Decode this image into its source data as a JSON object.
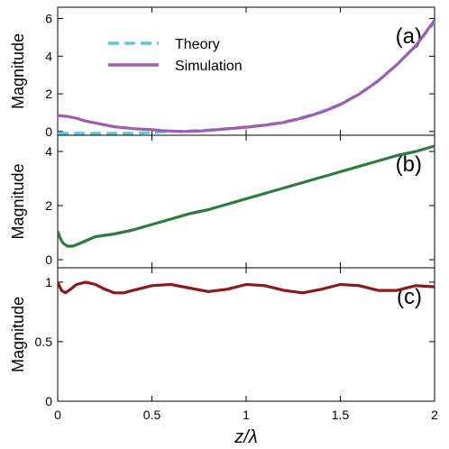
{
  "chart_data": [
    {
      "type": "line",
      "panel_label": "(a)",
      "xlabel": "",
      "ylabel": "Magnitude",
      "xlim": [
        0,
        2
      ],
      "ylim": [
        -0.2,
        6.6
      ],
      "yticks": [
        0,
        2,
        4,
        6
      ],
      "xticks": [
        0,
        0.5,
        1,
        1.5,
        2
      ],
      "grid": false,
      "legend": "top-left",
      "series": [
        {
          "name": "Theory",
          "color": "#5bc8dc",
          "dash": true,
          "x": [
            0,
            0.1,
            0.2,
            0.3,
            0.4,
            0.5,
            0.6,
            0.7,
            0.8,
            0.9,
            1.0,
            1.1,
            1.2,
            1.3,
            1.4,
            1.5,
            1.6,
            1.7,
            1.8,
            1.9,
            2.0
          ],
          "y": [
            -0.1,
            -0.1,
            -0.1,
            -0.1,
            -0.1,
            -0.05,
            0.0,
            0.03,
            0.08,
            0.15,
            0.25,
            0.35,
            0.5,
            0.75,
            1.05,
            1.45,
            2.0,
            2.7,
            3.55,
            4.55,
            5.8
          ]
        },
        {
          "name": "Simulation",
          "color": "#a05cb0",
          "dash": false,
          "x": [
            0,
            0.05,
            0.1,
            0.15,
            0.2,
            0.25,
            0.3,
            0.35,
            0.4,
            0.45,
            0.5,
            0.55,
            0.6,
            0.65,
            0.7,
            0.75,
            0.8,
            0.9,
            1.0,
            1.1,
            1.2,
            1.3,
            1.4,
            1.5,
            1.6,
            1.7,
            1.8,
            1.9,
            2.0
          ],
          "y": [
            0.85,
            0.8,
            0.7,
            0.55,
            0.45,
            0.35,
            0.25,
            0.2,
            0.15,
            0.12,
            0.1,
            0.05,
            0.02,
            0.0,
            0.0,
            0.02,
            0.06,
            0.14,
            0.22,
            0.33,
            0.48,
            0.72,
            1.02,
            1.43,
            1.98,
            2.68,
            3.55,
            4.55,
            5.9
          ]
        }
      ]
    },
    {
      "type": "line",
      "panel_label": "(b)",
      "xlabel": "",
      "ylabel": "Magnitude",
      "xlim": [
        0,
        2
      ],
      "ylim": [
        -0.3,
        4.6
      ],
      "yticks": [
        0,
        2,
        4
      ],
      "xticks": [
        0,
        0.5,
        1,
        1.5,
        2
      ],
      "grid": false,
      "series": [
        {
          "color": "#2e7a3c",
          "x": [
            0,
            0.01,
            0.02,
            0.03,
            0.05,
            0.08,
            0.1,
            0.15,
            0.2,
            0.3,
            0.4,
            0.5,
            0.6,
            0.7,
            0.8,
            0.9,
            1.0,
            1.1,
            1.2,
            1.3,
            1.4,
            1.5,
            1.6,
            1.7,
            1.8,
            1.9,
            2.0
          ],
          "y": [
            1.05,
            0.85,
            0.7,
            0.6,
            0.5,
            0.5,
            0.55,
            0.7,
            0.85,
            0.95,
            1.1,
            1.3,
            1.5,
            1.7,
            1.85,
            2.05,
            2.25,
            2.45,
            2.65,
            2.85,
            3.05,
            3.25,
            3.45,
            3.65,
            3.85,
            4.0,
            4.2
          ]
        }
      ]
    },
    {
      "type": "line",
      "panel_label": "(c)",
      "xlabel": "z/λ",
      "ylabel": "Magnitude",
      "xlim": [
        0,
        2
      ],
      "ylim": [
        0,
        1.12
      ],
      "yticks": [
        0,
        0.5,
        1
      ],
      "xticks": [
        0,
        0.5,
        1,
        1.5,
        2
      ],
      "grid": false,
      "series": [
        {
          "color": "#8b1a1a",
          "x": [
            0,
            0.02,
            0.04,
            0.06,
            0.1,
            0.15,
            0.2,
            0.25,
            0.3,
            0.35,
            0.4,
            0.5,
            0.6,
            0.7,
            0.8,
            0.9,
            1.0,
            1.1,
            1.2,
            1.3,
            1.4,
            1.5,
            1.6,
            1.7,
            1.8,
            1.9,
            2.0
          ],
          "y": [
            1.0,
            0.93,
            0.91,
            0.93,
            0.98,
            1.0,
            0.98,
            0.94,
            0.91,
            0.91,
            0.93,
            0.97,
            0.98,
            0.95,
            0.92,
            0.94,
            0.98,
            0.97,
            0.93,
            0.91,
            0.94,
            0.98,
            0.97,
            0.93,
            0.93,
            0.97,
            0.96
          ]
        }
      ]
    }
  ]
}
